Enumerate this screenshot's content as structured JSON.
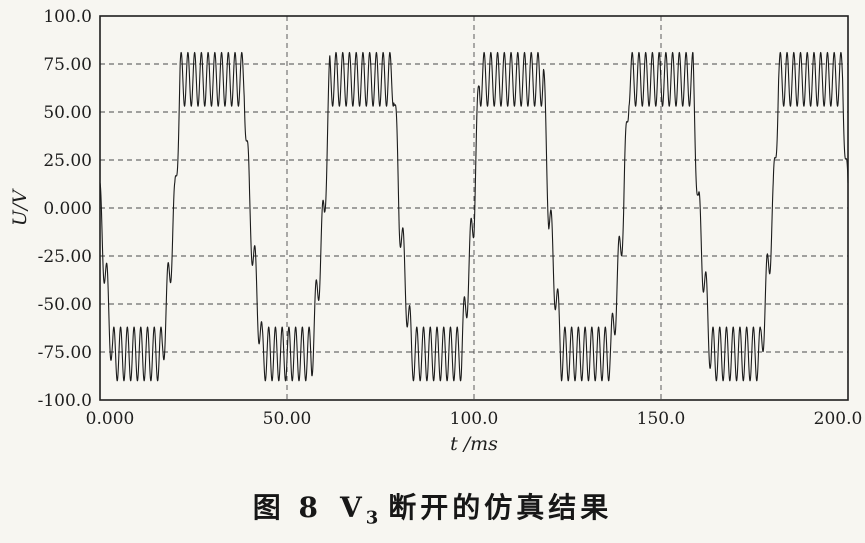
{
  "chart_data": {
    "type": "line",
    "title": "",
    "xlabel": "t /ms",
    "ylabel": "U/V",
    "xlim": [
      0,
      200
    ],
    "ylim": [
      -100,
      100
    ],
    "grid": true,
    "grid_style": "dashed",
    "legend": "none",
    "x_tick_values": [
      0,
      50,
      100,
      150,
      200
    ],
    "x_tick_labels": [
      "0.000",
      "50.00",
      "100.0",
      "150.0",
      "200.0"
    ],
    "y_tick_values": [
      100,
      75,
      50,
      25,
      0,
      -25,
      -50,
      -75,
      -100
    ],
    "y_tick_labels": [
      "100.0",
      "75.00",
      "50.00",
      "25.00",
      "0.000",
      "-25.00",
      "-50.00",
      "-75.00",
      "-100.0"
    ],
    "series": [
      {
        "name": "U",
        "description": "25 Hz fundamental (40 ms period); positive half-cycle clipped into a rippled plateau oscillating roughly between +50 V and +85 V; negative half-cycle flattens near -76 V with ripple reaching about -90 V; high-frequency switching ripple (~1.8 ms period) superimposed over the whole trace; five full cycles across 0-200 ms",
        "generator": {
          "period_ms": 40,
          "pos_gain": 300,
          "pos_clip_level": 67,
          "neg_gain": 150,
          "neg_clip_level": -76,
          "ripple_amplitude": 14,
          "ripple_period_ms": 1.8,
          "ripple_phase_rad": 1.2,
          "t_start_ms": 0,
          "t_end_ms": 200,
          "t_step_ms": 0.05
        }
      }
    ]
  },
  "caption": {
    "figure_label": "图 8",
    "subject": "V",
    "subject_subscript": "3",
    "text": "断开的仿真结果"
  }
}
